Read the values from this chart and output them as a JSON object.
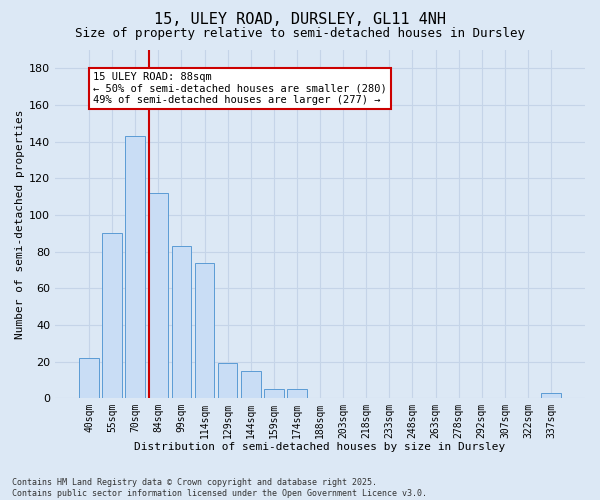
{
  "title_line1": "15, ULEY ROAD, DURSLEY, GL11 4NH",
  "title_line2": "Size of property relative to semi-detached houses in Dursley",
  "xlabel": "Distribution of semi-detached houses by size in Dursley",
  "ylabel": "Number of semi-detached properties",
  "categories": [
    "40sqm",
    "55sqm",
    "70sqm",
    "84sqm",
    "99sqm",
    "114sqm",
    "129sqm",
    "144sqm",
    "159sqm",
    "174sqm",
    "188sqm",
    "203sqm",
    "218sqm",
    "233sqm",
    "248sqm",
    "263sqm",
    "278sqm",
    "292sqm",
    "307sqm",
    "322sqm",
    "337sqm"
  ],
  "values": [
    22,
    90,
    143,
    112,
    83,
    74,
    19,
    15,
    5,
    5,
    0,
    0,
    0,
    0,
    0,
    0,
    0,
    0,
    0,
    0,
    3
  ],
  "bar_color": "#c9ddf5",
  "bar_edge_color": "#5b9bd5",
  "grid_color": "#c5d4e8",
  "vline_color": "#cc0000",
  "annotation_line1": "15 ULEY ROAD: 88sqm",
  "annotation_line2": "← 50% of semi-detached houses are smaller (280)",
  "annotation_line3": "49% of semi-detached houses are larger (277) →",
  "annotation_box_facecolor": "#ffffff",
  "annotation_box_edgecolor": "#cc0000",
  "ylim": [
    0,
    190
  ],
  "yticks": [
    0,
    20,
    40,
    60,
    80,
    100,
    120,
    140,
    160,
    180
  ],
  "bg_color": "#dce8f5",
  "footnote_line1": "Contains HM Land Registry data © Crown copyright and database right 2025.",
  "footnote_line2": "Contains public sector information licensed under the Open Government Licence v3.0.",
  "title_fontsize": 11,
  "subtitle_fontsize": 9,
  "xlabel_fontsize": 8,
  "ylabel_fontsize": 8,
  "tick_fontsize": 7,
  "annot_fontsize": 7.5,
  "footnote_fontsize": 6
}
